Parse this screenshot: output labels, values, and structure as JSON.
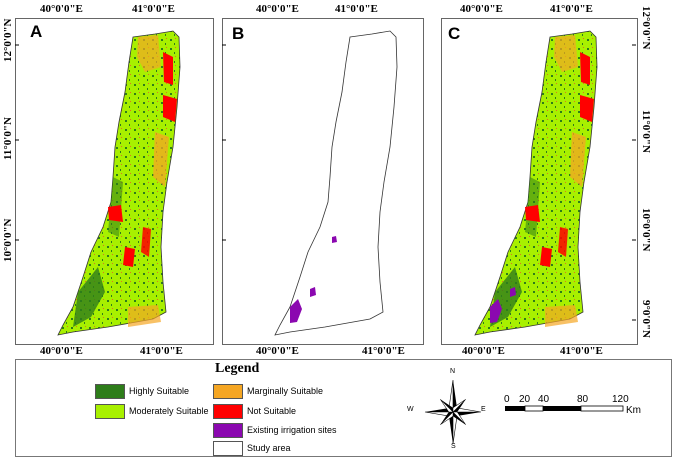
{
  "colors": {
    "highly": "#2e7d1a",
    "moderately": "#a8f000",
    "marginally": "#f5a623",
    "not": "#ff0000",
    "irrigation": "#8b08b0",
    "study": "#ffffff"
  },
  "panels": [
    {
      "letter": "A",
      "lon_top": [
        "40°0'0\"E",
        "41°0'0\"E"
      ],
      "lon_bottom": [
        "40°0'0\"E",
        "41°0'0\"E"
      ]
    },
    {
      "letter": "B",
      "lon_top": [
        "40°0'0\"E",
        "41°0'0\"E"
      ],
      "lon_bottom": [
        "40°0'0\"E",
        "41°0'0\"E"
      ]
    },
    {
      "letter": "C",
      "lon_top": [
        "40°0'0\"E",
        "41°0'0\"E"
      ],
      "lon_bottom": [
        "40°0'0\"E",
        "41°0'0\"E"
      ]
    }
  ],
  "lat_left": [
    "12°0'0\"N",
    "11°0'0\"N",
    "10°0'0\"N"
  ],
  "lat_right": [
    "12°0'0\"N",
    "11°0'0\"N",
    "10°0'0\"N",
    "9°0'0\"N"
  ],
  "legend": {
    "title": "Legend",
    "items": [
      {
        "label": "Highly Suitable",
        "color_key": "highly"
      },
      {
        "label": "Moderately Suitable",
        "color_key": "moderately"
      },
      {
        "label": "Marginally Suitable",
        "color_key": "marginally"
      },
      {
        "label": "Not Suitable",
        "color_key": "not"
      },
      {
        "label": "Existing irrigation sites",
        "color_key": "irrigation"
      },
      {
        "label": "Study area",
        "color_key": "study"
      }
    ]
  },
  "compass": {
    "n": "N",
    "s": "S",
    "e": "E",
    "w": "W"
  },
  "scale": {
    "ticks": [
      "0",
      "20",
      "40",
      "80",
      "120"
    ],
    "unit": "Km"
  }
}
